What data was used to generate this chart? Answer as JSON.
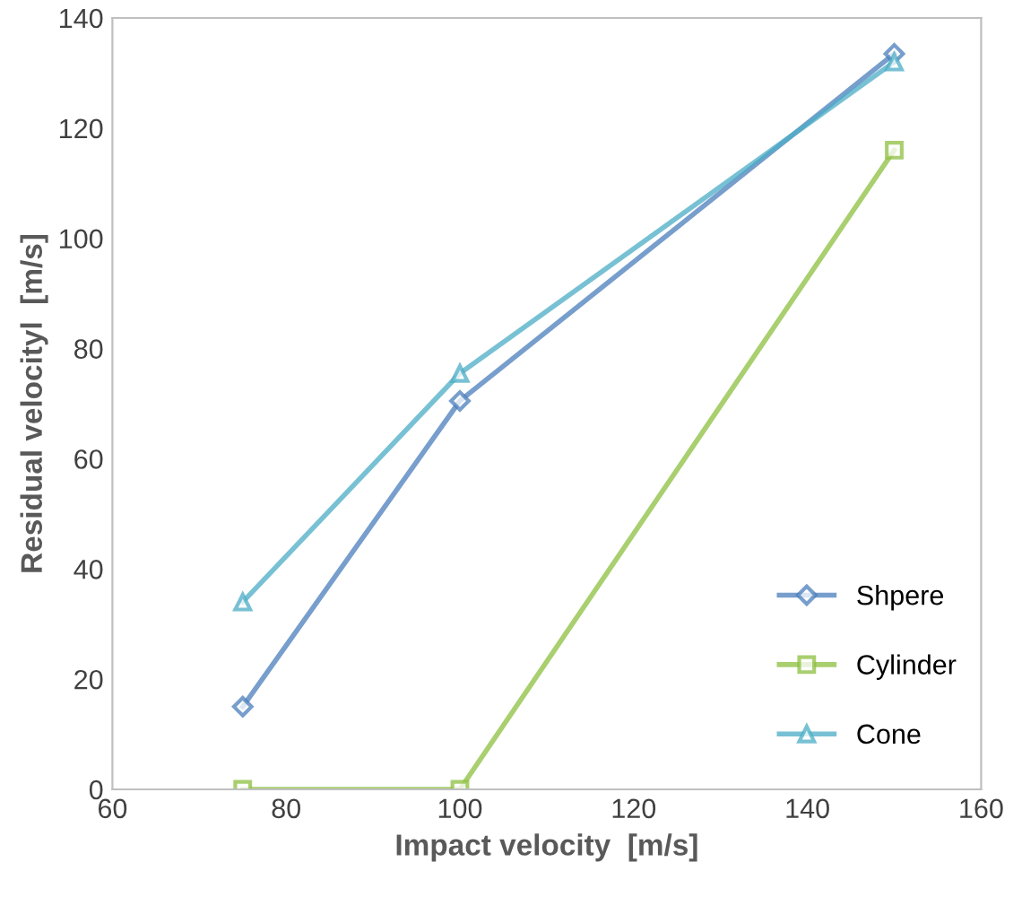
{
  "chart_data": {
    "type": "line",
    "xlabel": "Impact velocity  [m/s]",
    "ylabel": "Residual velocityl  [m/s]",
    "x": [
      75,
      100,
      150
    ],
    "series": [
      {
        "name": "Shpere",
        "color": "#4a7ebb",
        "marker": "diamond",
        "values": [
          15,
          70.5,
          133.5
        ]
      },
      {
        "name": "Cylinder",
        "color": "#8cbf3f",
        "marker": "square",
        "values": [
          0,
          0,
          116
        ]
      },
      {
        "name": "Cone",
        "color": "#4bacc6",
        "marker": "triangle",
        "values": [
          34,
          75.5,
          132
        ]
      }
    ],
    "xlim": [
      60,
      160
    ],
    "xticks": [
      60,
      80,
      100,
      120,
      140,
      160
    ],
    "ylim": [
      0,
      140
    ],
    "yticks": [
      0,
      20,
      40,
      60,
      80,
      100,
      120,
      140
    ],
    "grid": false,
    "legend": "bottom right"
  }
}
